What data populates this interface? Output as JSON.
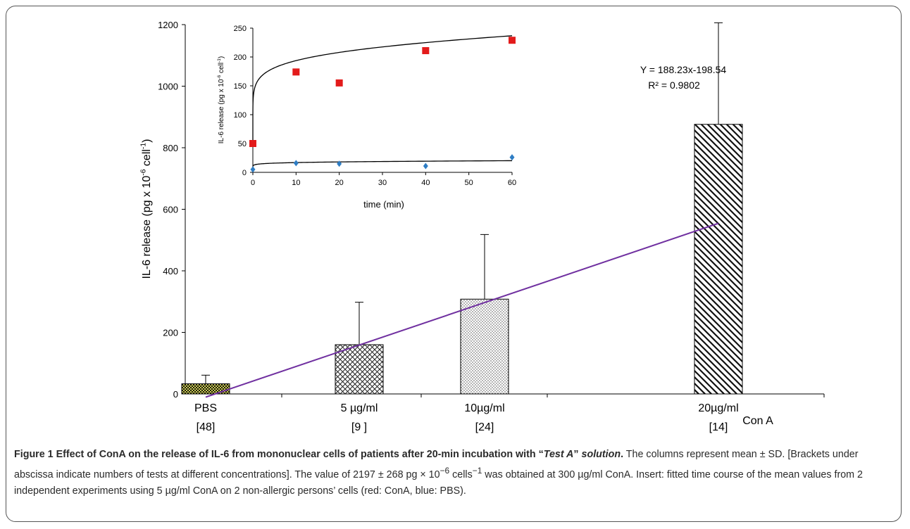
{
  "chart_data": [
    {
      "type": "bar",
      "categories": [
        "PBS",
        "5 µg/ml",
        "10µg/ml",
        "20µg/ml"
      ],
      "brackets": [
        "[48]",
        "[9 ]",
        "[24]",
        "[14]"
      ],
      "values": [
        33,
        160,
        308,
        876
      ],
      "errors": [
        28,
        138,
        210,
        330
      ],
      "ylabel": "IL-6 release (pg x 10",
      "ylabel_sup": "-6",
      "ylabel_mid": " cell",
      "ylabel_sup2": "-1",
      "ylabel_end": ")",
      "ylim": [
        0,
        1200
      ],
      "yticks": [
        "0",
        "200",
        "400",
        "600",
        "800",
        "1000",
        "1200"
      ],
      "group_label": "Con A",
      "trendline": {
        "slope": 188.23,
        "intercept": -198.54
      },
      "equation": "Y = 188.23x-198.54",
      "r2": "R² = 0.9802",
      "colors": {
        "trend": "#7030a0",
        "pbs": "#3a3a0a"
      }
    },
    {
      "type": "scatter",
      "xlabel": "time (min)",
      "ylabel": "IL-6 release (pg x 10",
      "ylabel_sup": "-6",
      "ylabel_mid": " cell",
      "ylabel_sup2": "-1",
      "ylabel_end": ")",
      "xlim": [
        0,
        60
      ],
      "ylim": [
        0,
        250
      ],
      "xticks": [
        "0",
        "10",
        "20",
        "30",
        "40",
        "50",
        "60"
      ],
      "yticks": [
        "0",
        "50",
        "100",
        "150",
        "200",
        "250"
      ],
      "series": [
        {
          "color": "#e31b1b",
          "x": [
            0,
            10,
            20,
            40,
            60
          ],
          "y": [
            50,
            174,
            155,
            211,
            229
          ]
        },
        {
          "color": "#2e7dc4",
          "x": [
            0,
            10,
            20,
            40,
            60
          ],
          "y": [
            5,
            16,
            15,
            11,
            26
          ]
        }
      ]
    }
  ],
  "caption": {
    "bold": "Figure 1 Effect of ConA on the release of IL-6 from mononuclear cells of patients after 20-min incubation with “",
    "bolditalic": "Test A",
    "bold2": "” ",
    "bolditalic2": "solution",
    "bold3": ".",
    "p1": " The columns represent mean ± SD. [Brackets under abscissa indicate numbers of tests at different concentrations]. The value of 2197 ± 268 pg × 10",
    "sup1": "−6",
    "p2": " cells",
    "sup2": "−1",
    "p3": " was obtained at 300 µg/ml ConA. Insert: fitted time course of the mean values from 2 independent experiments using 5 µg/ml ConA on 2 non-allergic persons’ cells (red: ConA, blue: PBS)."
  }
}
